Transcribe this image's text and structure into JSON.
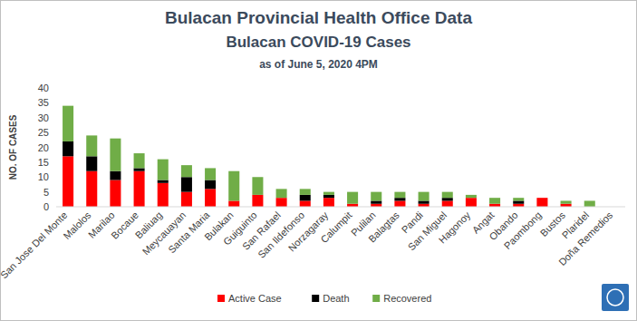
{
  "chart_data": {
    "type": "bar",
    "stacked": true,
    "title": "Bulacan Provincial Health Office Data",
    "subtitle": "Bulacan COVID-19 Cases",
    "annotation": "as of June 5, 2020 4PM",
    "y_label": "NO. OF CASES",
    "categories": [
      "San Jose Del Monte",
      "Malolos",
      "Marilao",
      "Bocaue",
      "Baliuag",
      "Meycauayan",
      "Santa Maria",
      "Bulakan",
      "Guiguinto",
      "San Rafael",
      "San Ildefonso",
      "Norzagaray",
      "Calumpit",
      "Pulilan",
      "Balagtas",
      "Pandi",
      "San Miguel",
      "Hagonoy",
      "Angat",
      "Obando",
      "Paombong",
      "Bustos",
      "Plaridel",
      "Doña Remedios"
    ],
    "series": [
      {
        "name": "Active Case",
        "color": "#ff0000",
        "values": [
          17,
          12,
          9,
          12,
          8,
          5,
          6,
          2,
          4,
          3,
          2,
          3,
          1,
          1,
          2,
          1,
          2,
          3,
          1,
          1,
          3,
          1,
          0,
          0
        ]
      },
      {
        "name": "Death",
        "color": "#000000",
        "values": [
          5,
          5,
          3,
          1,
          1,
          5,
          3,
          0,
          0,
          0,
          2,
          1,
          0,
          1,
          1,
          1,
          1,
          0,
          0,
          1,
          0,
          0,
          0,
          0
        ]
      },
      {
        "name": "Recovered",
        "color": "#70ad47",
        "values": [
          12,
          7,
          11,
          5,
          7,
          4,
          4,
          10,
          6,
          3,
          2,
          1,
          4,
          3,
          2,
          3,
          2,
          1,
          2,
          1,
          0,
          1,
          2,
          0
        ]
      }
    ],
    "ylim": [
      0,
      40
    ],
    "yticks": [
      0,
      5,
      10,
      15,
      20,
      25,
      30,
      35,
      40
    ],
    "grid": false,
    "legend": "bottom"
  }
}
